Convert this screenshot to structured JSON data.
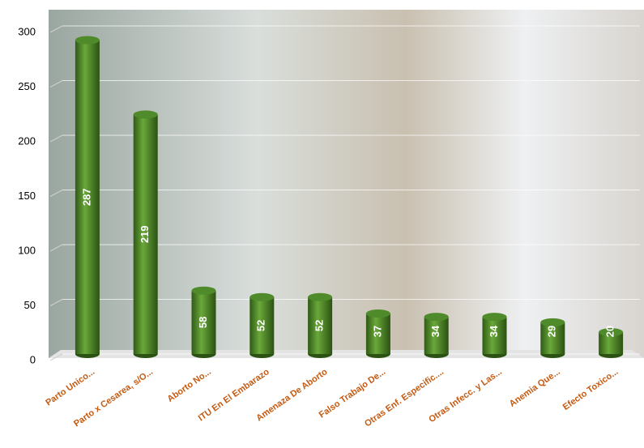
{
  "chart_data": {
    "type": "bar",
    "categories": [
      "Parto Unico...",
      "Parto x Cesarea, s/O...",
      "Aborto No...",
      "ITU En El Embarazo",
      "Amenaza De Aborto",
      "Falso Trabajo De...",
      "Otras Enf. Especific....",
      "Otras Infecc. y Las...",
      "Anemia Que...",
      "Efecto Toxico..."
    ],
    "values": [
      287,
      219,
      58,
      52,
      52,
      37,
      34,
      34,
      29,
      20
    ],
    "color": "#4f8a2b",
    "ylim": [
      0,
      300
    ],
    "yticks": [
      0,
      50,
      100,
      150,
      200,
      250,
      300
    ],
    "grid": true
  }
}
